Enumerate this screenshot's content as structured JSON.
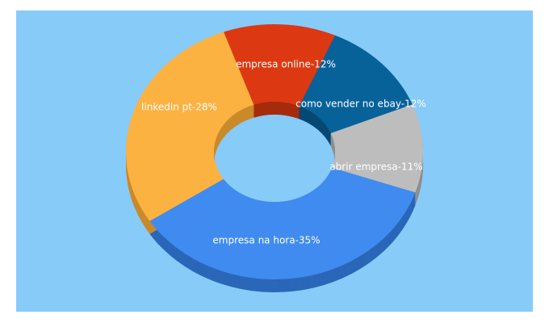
{
  "chart_data": {
    "type": "pie",
    "style": "3d-donut",
    "background_color": "#87CBF9",
    "title": "",
    "legend": "none",
    "slices": [
      {
        "label": "empresa online",
        "value": 12,
        "display": "empresa online-12%",
        "color": "#DC3912",
        "side_color": "#A62B0D"
      },
      {
        "label": "como vender no ebay",
        "value": 12,
        "display": "como vender no ebay-12%",
        "color": "#08629A",
        "side_color": "#054872"
      },
      {
        "label": "abrir empresa",
        "value": 11,
        "display": "abrir empresa-11%",
        "color": "#BDBDBD",
        "side_color": "#8E8E8E"
      },
      {
        "label": "empresa na hora",
        "value": 35,
        "display": "empresa na hora-35%",
        "color": "#3F8BF0",
        "side_color": "#2A67B8"
      },
      {
        "label": "linkedin pt",
        "value": 28,
        "display": "linkedin pt-28%",
        "color": "#FBB241",
        "side_color": "#C98A2B"
      }
    ]
  }
}
